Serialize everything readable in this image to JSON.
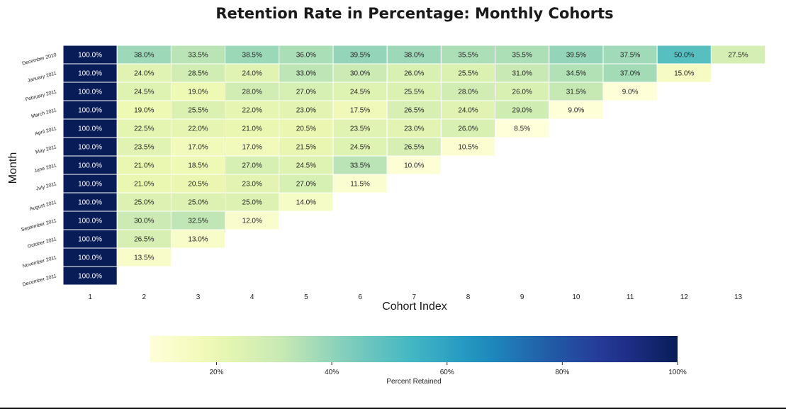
{
  "chart_data": {
    "type": "heatmap",
    "title": "Retention Rate in Percentage: Monthly Cohorts",
    "xlabel": "Cohort Index",
    "ylabel": "Month",
    "x": [
      "1",
      "2",
      "3",
      "4",
      "5",
      "6",
      "7",
      "8",
      "9",
      "10",
      "11",
      "12",
      "13"
    ],
    "y": [
      "December 2010",
      "January 2011",
      "February 2011",
      "March 2011",
      "April 2011",
      "May 2011",
      "June 2011",
      "July 2011",
      "August 2011",
      "September 2011",
      "October 2011",
      "November 2011",
      "December 2011"
    ],
    "values": [
      [
        100.0,
        38.0,
        33.5,
        38.5,
        36.0,
        39.5,
        38.0,
        35.5,
        35.5,
        39.5,
        37.5,
        50.0,
        27.5
      ],
      [
        100.0,
        24.0,
        28.5,
        24.0,
        33.0,
        30.0,
        26.0,
        25.5,
        31.0,
        34.5,
        37.0,
        15.0
      ],
      [
        100.0,
        24.5,
        19.0,
        28.0,
        27.0,
        24.5,
        25.5,
        28.0,
        26.0,
        31.5,
        9.0
      ],
      [
        100.0,
        19.0,
        25.5,
        22.0,
        23.0,
        17.5,
        26.5,
        24.0,
        29.0,
        9.0
      ],
      [
        100.0,
        22.5,
        22.0,
        21.0,
        20.5,
        23.5,
        23.0,
        26.0,
        8.5
      ],
      [
        100.0,
        23.5,
        17.0,
        17.0,
        21.5,
        24.5,
        26.5,
        10.5
      ],
      [
        100.0,
        21.0,
        18.5,
        27.0,
        24.5,
        33.5,
        10.0
      ],
      [
        100.0,
        21.0,
        20.5,
        23.0,
        27.0,
        11.5
      ],
      [
        100.0,
        25.0,
        25.0,
        25.0,
        14.0
      ],
      [
        100.0,
        30.0,
        32.5,
        12.0
      ],
      [
        100.0,
        26.5,
        13.0
      ],
      [
        100.0,
        13.5
      ],
      [
        100.0
      ]
    ],
    "value_format": "{v}%",
    "colormap": "YlGnBu",
    "color_range": [
      8.5,
      100
    ],
    "colorbar": {
      "label": "Percent Retained",
      "ticks": [
        "20%",
        "40%",
        "60%",
        "80%",
        "100%"
      ],
      "tick_values": [
        20,
        40,
        60,
        80,
        100
      ],
      "orientation": "horizontal",
      "placement": "bottom"
    }
  }
}
